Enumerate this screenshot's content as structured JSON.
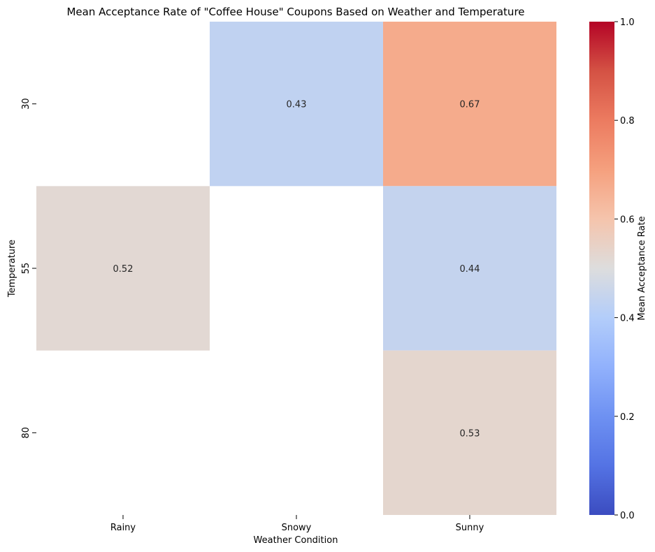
{
  "chart_data": {
    "type": "heatmap",
    "title": "Mean Acceptance Rate of \"Coffee House\" Coupons Based on Weather and Temperature",
    "xlabel": "Weather Condition",
    "ylabel": "Temperature",
    "x_categories": [
      "Rainy",
      "Snowy",
      "Sunny"
    ],
    "y_categories": [
      "30",
      "55",
      "80"
    ],
    "cells": [
      {
        "x": "Snowy",
        "y": "30",
        "value": 0.43,
        "label": "0.43"
      },
      {
        "x": "Sunny",
        "y": "30",
        "value": 0.67,
        "label": "0.67"
      },
      {
        "x": "Rainy",
        "y": "55",
        "value": 0.52,
        "label": "0.52"
      },
      {
        "x": "Sunny",
        "y": "55",
        "value": 0.44,
        "label": "0.44"
      },
      {
        "x": "Sunny",
        "y": "80",
        "value": 0.53,
        "label": "0.53"
      }
    ],
    "missing_cells": [
      {
        "x": "Rainy",
        "y": "30"
      },
      {
        "x": "Snowy",
        "y": "55"
      },
      {
        "x": "Rainy",
        "y": "80"
      },
      {
        "x": "Snowy",
        "y": "80"
      }
    ],
    "colorbar": {
      "label": "Mean Acceptance Rate",
      "range": [
        0,
        1
      ],
      "ticks": [
        "0.0",
        "0.2",
        "0.4",
        "0.6",
        "0.8",
        "1.0"
      ],
      "colormap": "coolwarm",
      "low_color": "#3b4cc0",
      "mid_color": "#dddddd",
      "high_color": "#b40426"
    }
  }
}
